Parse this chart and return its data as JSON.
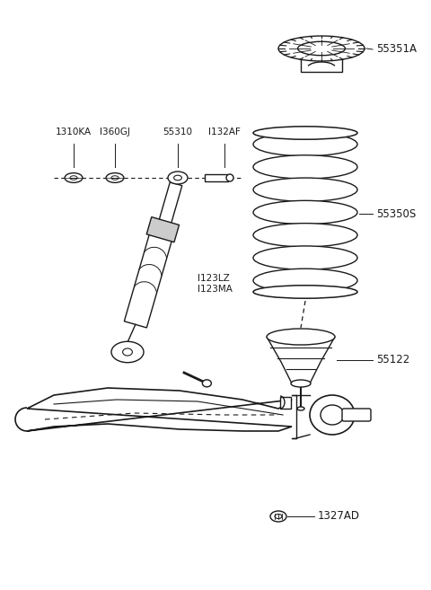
{
  "background_color": "#ffffff",
  "line_color": "#1a1a1a",
  "fig_width": 4.8,
  "fig_height": 6.57,
  "dpi": 100,
  "labels": {
    "55351A": "55351A",
    "55350S": "55350S",
    "55122": "55122",
    "1327AD": "1327AD",
    "1310KA": "1310KA",
    "1360GJ": "I360GJ",
    "55310": "55310",
    "1132AF": "I132AF",
    "1123LZ": "I123LZ",
    "1123MA": "I123MA"
  }
}
